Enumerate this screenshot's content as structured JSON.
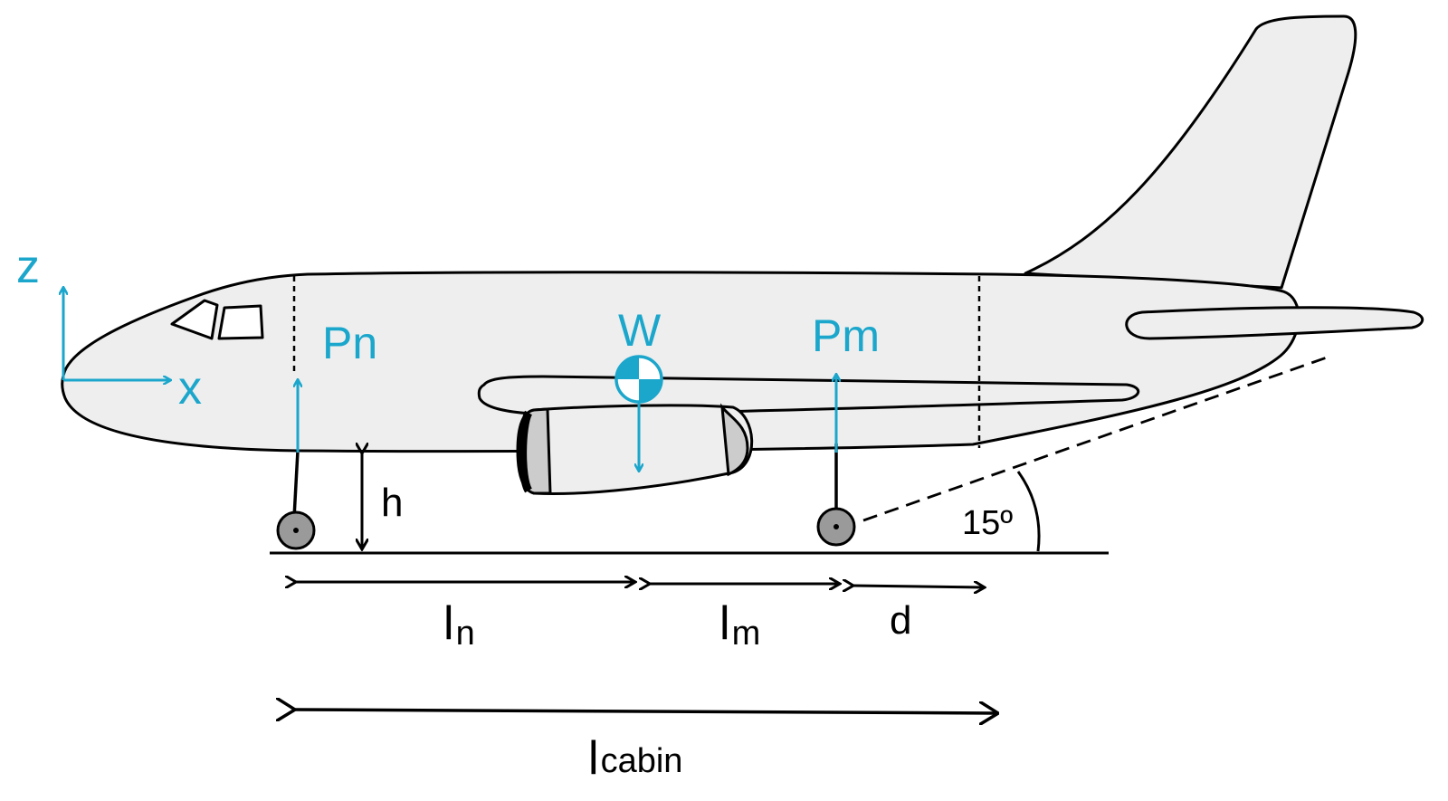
{
  "labels": {
    "z_axis": "z",
    "x_axis": "x",
    "nose_force": "Pn",
    "weight": "W",
    "main_force": "Pm",
    "height": "h",
    "l_nose_main": "l",
    "l_nose_sub": "n",
    "l_main_main": "l",
    "l_main_sub": "m",
    "d": "d",
    "l_cabin_main": "l",
    "l_cabin_sub": "cabin",
    "angle": "15º"
  },
  "colors": {
    "accent": "#1ba6cc",
    "fuselage_fill": "#eeeeee",
    "stroke": "#000000",
    "wheel": "#9a9a9a"
  }
}
